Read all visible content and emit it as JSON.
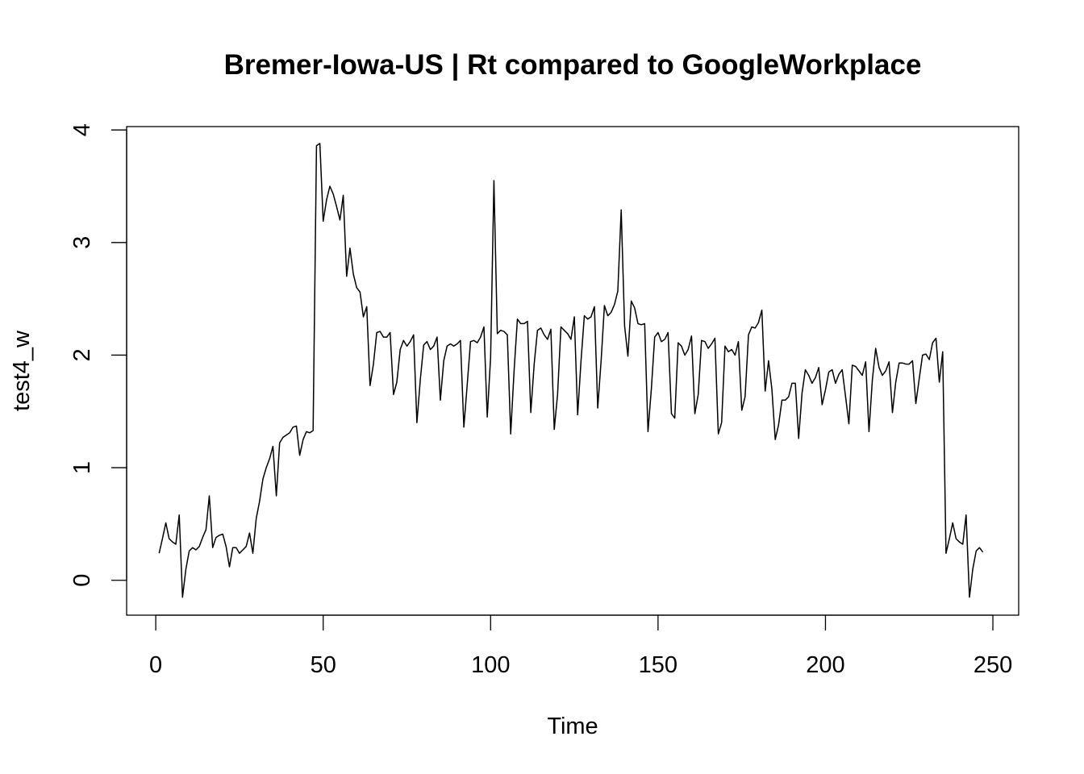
{
  "chart_data": {
    "type": "line",
    "title": "Bremer-Iowa-US | Rt compared to GoogleWorkplace",
    "xlabel": "Time",
    "ylabel": "test4_w",
    "xlim": [
      -8.7,
      257.7
    ],
    "ylim": [
      -0.31,
      4.03
    ],
    "x_ticks": [
      0,
      50,
      100,
      150,
      200,
      250
    ],
    "x_tick_labels": [
      "0",
      "50",
      "100",
      "150",
      "200",
      "250"
    ],
    "y_ticks": [
      0,
      1,
      2,
      3,
      4
    ],
    "y_tick_labels": [
      "0",
      "1",
      "2",
      "3",
      "4"
    ],
    "grid": false,
    "legend": "none",
    "series": [
      {
        "x_start": 1,
        "x_step": 1,
        "color": "#000000",
        "values": [
          0.24,
          0.37,
          0.51,
          0.37,
          0.34,
          0.32,
          0.58,
          -0.15,
          0.1,
          0.26,
          0.29,
          0.27,
          0.3,
          0.38,
          0.45,
          0.75,
          0.29,
          0.38,
          0.4,
          0.41,
          0.3,
          0.12,
          0.29,
          0.29,
          0.24,
          0.27,
          0.3,
          0.42,
          0.24,
          0.55,
          0.7,
          0.9,
          1.0,
          1.08,
          1.19,
          0.75,
          1.22,
          1.27,
          1.29,
          1.31,
          1.36,
          1.37,
          1.11,
          1.25,
          1.32,
          1.31,
          1.33,
          3.86,
          3.88,
          3.19,
          3.38,
          3.5,
          3.43,
          3.32,
          3.2,
          3.42,
          2.7,
          2.95,
          2.72,
          2.6,
          2.56,
          2.34,
          2.43,
          1.73,
          1.92,
          2.2,
          2.21,
          2.16,
          2.16,
          2.2,
          1.65,
          1.76,
          2.05,
          2.13,
          2.08,
          2.12,
          2.18,
          1.4,
          1.78,
          2.09,
          2.12,
          2.05,
          2.08,
          2.16,
          1.6,
          1.95,
          2.08,
          2.1,
          2.08,
          2.1,
          2.13,
          1.36,
          1.73,
          2.12,
          2.13,
          2.11,
          2.16,
          2.25,
          1.45,
          1.98,
          3.55,
          2.19,
          2.22,
          2.21,
          2.18,
          1.3,
          1.85,
          2.32,
          2.28,
          2.28,
          2.3,
          1.49,
          1.92,
          2.22,
          2.24,
          2.18,
          2.14,
          2.23,
          1.34,
          1.65,
          2.25,
          2.22,
          2.19,
          2.14,
          2.34,
          1.47,
          1.95,
          2.35,
          2.32,
          2.34,
          2.43,
          1.53,
          1.95,
          2.44,
          2.35,
          2.38,
          2.45,
          2.57,
          3.29,
          2.26,
          1.99,
          2.48,
          2.42,
          2.28,
          2.27,
          2.28,
          1.32,
          1.7,
          2.16,
          2.2,
          2.12,
          2.14,
          2.2,
          1.48,
          1.44,
          2.11,
          2.08,
          2.0,
          2.05,
          2.17,
          1.48,
          1.65,
          2.13,
          2.12,
          2.06,
          2.1,
          2.15,
          1.3,
          1.4,
          2.08,
          2.03,
          2.05,
          2.0,
          2.12,
          1.51,
          1.63,
          2.18,
          2.25,
          2.24,
          2.29,
          2.4,
          1.68,
          1.95,
          1.7,
          1.25,
          1.38,
          1.6,
          1.6,
          1.63,
          1.75,
          1.75,
          1.26,
          1.66,
          1.87,
          1.82,
          1.75,
          1.8,
          1.89,
          1.56,
          1.69,
          1.85,
          1.87,
          1.75,
          1.83,
          1.87,
          1.63,
          1.39,
          1.91,
          1.9,
          1.86,
          1.82,
          1.94,
          1.32,
          1.78,
          2.06,
          1.89,
          1.82,
          1.86,
          1.94,
          1.49,
          1.76,
          1.93,
          1.93,
          1.92,
          1.92,
          1.95,
          1.57,
          1.79,
          2.0,
          2.01,
          1.96,
          2.11,
          2.15,
          1.76,
          2.03,
          0.24,
          0.37,
          0.51,
          0.37,
          0.34,
          0.32,
          0.58,
          -0.15,
          0.1,
          0.26,
          0.29,
          0.25
        ]
      }
    ]
  }
}
